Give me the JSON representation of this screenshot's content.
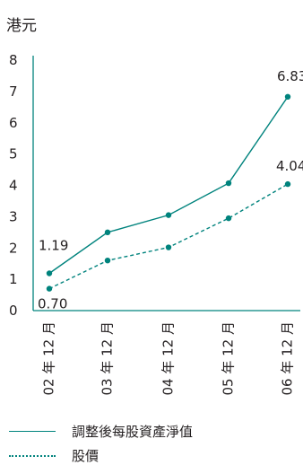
{
  "chart_data": {
    "type": "line",
    "unit_label": "港元",
    "categories": [
      "02 年 12 月",
      "03 年 12 月",
      "04 年 12 月",
      "05 年 12 月",
      "06 年 12 月"
    ],
    "ylim": [
      0,
      8
    ],
    "yticks": [
      0,
      1,
      2,
      3,
      4,
      5,
      6,
      7,
      8
    ],
    "series": [
      {
        "name": "調整後每股資產淨值",
        "style": "solid",
        "color": "#00837d",
        "values": [
          1.19,
          2.5,
          3.05,
          4.07,
          6.83
        ],
        "labels": [
          "1.19",
          "",
          "",
          "",
          "6.83"
        ]
      },
      {
        "name": "股價",
        "style": "dashed",
        "color": "#00837d",
        "values": [
          0.7,
          1.6,
          2.02,
          2.95,
          4.04
        ],
        "labels": [
          "0.70",
          "",
          "",
          "",
          "4.04"
        ]
      }
    ],
    "grid": false,
    "legend_position": "bottom-left"
  }
}
